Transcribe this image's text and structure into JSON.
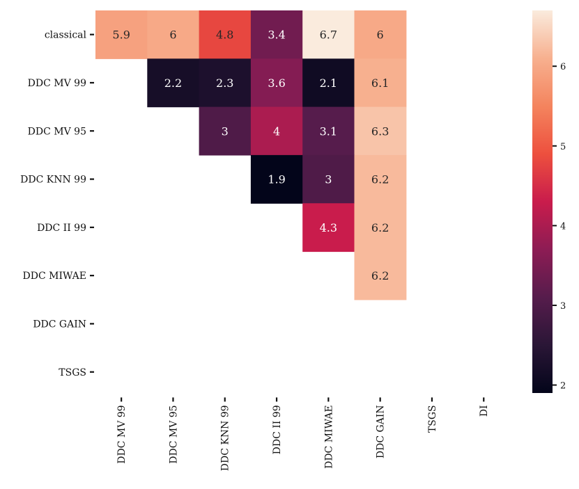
{
  "chart_data": {
    "type": "heatmap",
    "title": "",
    "xlabel": "",
    "ylabel": "",
    "rows": [
      "classical",
      "DDC MV 99",
      "DDC MV 95",
      "DDC KNN 99",
      "DDC II 99",
      "DDC MIWAE",
      "DDC GAIN",
      "TSGS"
    ],
    "columns": [
      "DDC MV 99",
      "DDC MV 95",
      "DDC KNN 99",
      "DDC II 99",
      "DDC MIWAE",
      "DDC GAIN",
      "TSGS",
      "DI"
    ],
    "values": [
      [
        5.9,
        6,
        4.8,
        3.4,
        6.7,
        6,
        null,
        null
      ],
      [
        null,
        2.2,
        2.3,
        3.6,
        2.1,
        6.1,
        null,
        null
      ],
      [
        null,
        null,
        3,
        4,
        3.1,
        6.3,
        null,
        null
      ],
      [
        null,
        null,
        null,
        1.9,
        3,
        6.2,
        null,
        null
      ],
      [
        null,
        null,
        null,
        null,
        4.3,
        6.2,
        null,
        null
      ],
      [
        null,
        null,
        null,
        null,
        null,
        6.2,
        null,
        null
      ],
      [
        null,
        null,
        null,
        null,
        null,
        null,
        null,
        null
      ],
      [
        null,
        null,
        null,
        null,
        null,
        null,
        null,
        null
      ]
    ],
    "colorbar": {
      "range": [
        1.9,
        6.7
      ],
      "ticks": [
        2,
        3,
        4,
        5,
        6
      ],
      "colormap": "rocket"
    },
    "colormap_stops": [
      "#03051a",
      "#2a1636",
      "#561c4c",
      "#8d1c54",
      "#c91c4c",
      "#ed503e",
      "#f4845e",
      "#f7b08f",
      "#faebdd"
    ]
  }
}
